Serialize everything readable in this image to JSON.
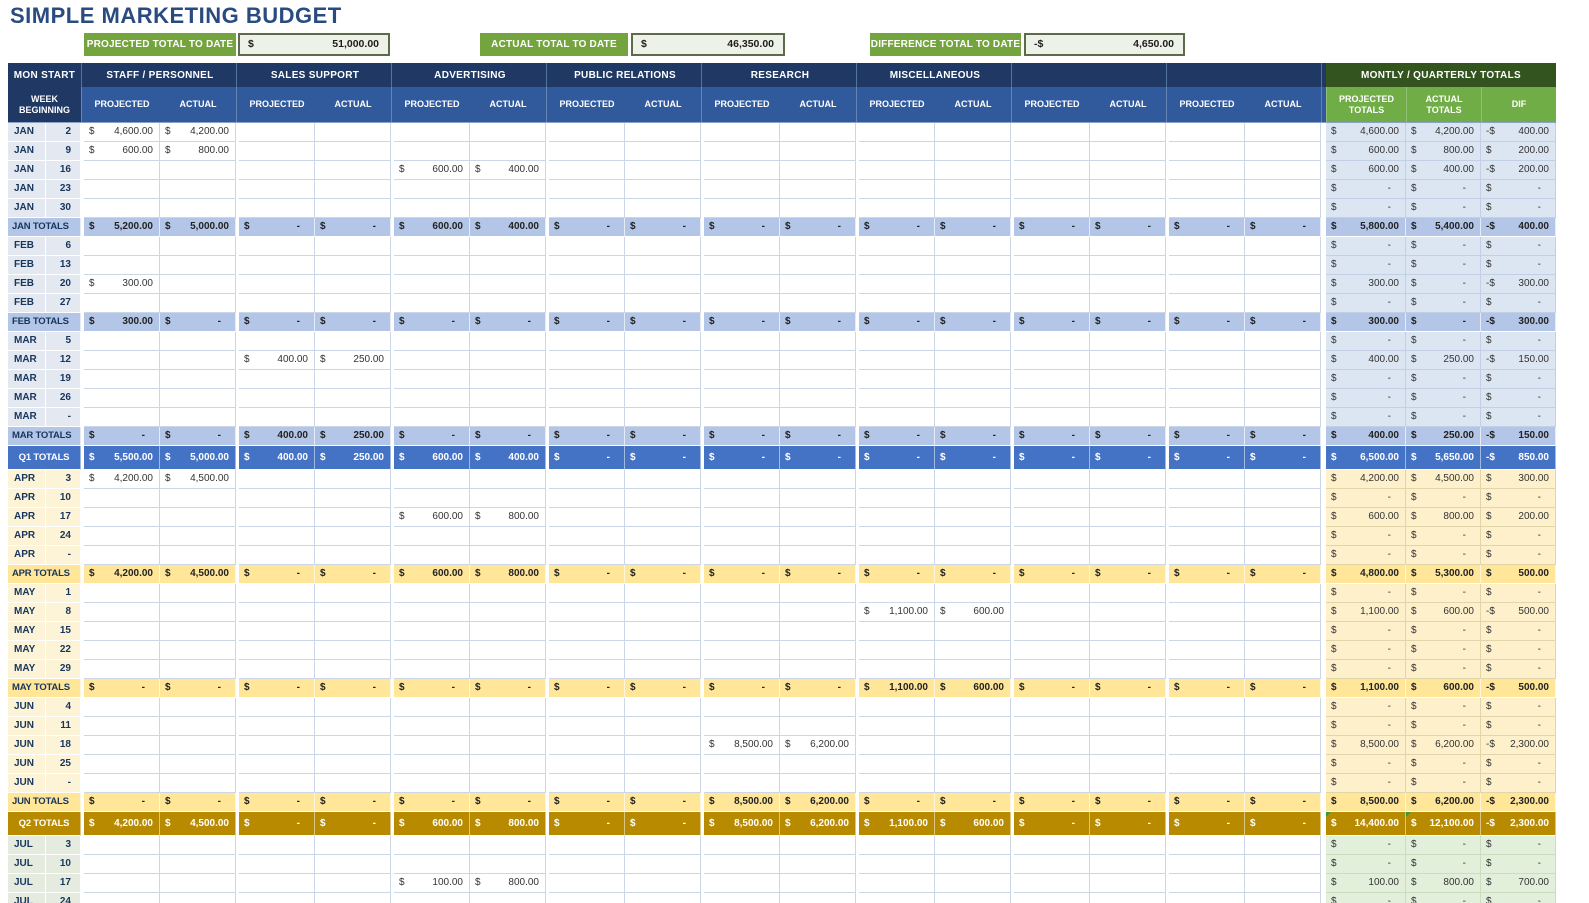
{
  "title": "SIMPLE MARKETING BUDGET",
  "summary": {
    "items": [
      {
        "label": "PROJECTED TOTAL TO DATE",
        "currency": "$",
        "value": "51,000.00"
      },
      {
        "label": "ACTUAL TOTAL TO DATE",
        "currency": "$",
        "value": "46,350.00"
      },
      {
        "label": "DIFFERENCE TOTAL TO DATE",
        "currency": "-$",
        "value": "4,650.00"
      }
    ]
  },
  "colors": {
    "header_navy": "#1f3864",
    "header_blue": "#315a9d",
    "totals_header_green": "#33531f",
    "totals_sub_green": "#70ad47",
    "summary_green": "#74a43d",
    "q1_accent": "#4472c4",
    "q1_band": "#b4c6e7",
    "q1_light": "#dce6f2",
    "q2_accent": "#b88a00",
    "q2_band": "#ffe699",
    "q2_light": "#fdf0ca",
    "q3_light": "#e2efda",
    "error_flag_green": "#2e9b3d"
  },
  "table": {
    "corner_header": "MON START",
    "week_header": "WEEK BEGINNING",
    "sub_projected": "PROJECTED",
    "sub_actual": "ACTUAL",
    "totals_header": "MONTLY / QUARTERLY TOTALS",
    "totals_subs": [
      "PROJECTED TOTALS",
      "ACTUAL TOTALS",
      "DIF"
    ],
    "groups": [
      {
        "key": "staff",
        "label": "STAFF / PERSONNEL"
      },
      {
        "key": "sales",
        "label": "SALES SUPPORT"
      },
      {
        "key": "advertising",
        "label": "ADVERTISING"
      },
      {
        "key": "pr",
        "label": "PUBLIC RELATIONS"
      },
      {
        "key": "research",
        "label": "RESEARCH"
      },
      {
        "key": "misc",
        "label": "MISCELLANEOUS"
      },
      {
        "key": "blank1",
        "label": ""
      },
      {
        "key": "blank2",
        "label": ""
      }
    ],
    "rows": [
      {
        "type": "week",
        "q": 1,
        "m": "JAN",
        "d": "2",
        "cells": {
          "0": "4,600.00",
          "1": "4,200.00"
        },
        "tot": [
          "4,600.00",
          "4,200.00",
          "-400.00"
        ]
      },
      {
        "type": "week",
        "q": 1,
        "m": "JAN",
        "d": "9",
        "cells": {
          "0": "600.00",
          "1": "800.00"
        },
        "tot": [
          "600.00",
          "800.00",
          "200.00"
        ]
      },
      {
        "type": "week",
        "q": 1,
        "m": "JAN",
        "d": "16",
        "cells": {
          "4": "600.00",
          "5": "400.00"
        },
        "tot": [
          "600.00",
          "400.00",
          "-200.00"
        ]
      },
      {
        "type": "week",
        "q": 1,
        "m": "JAN",
        "d": "23",
        "cells": {},
        "tot": [
          "-",
          "-",
          "-"
        ]
      },
      {
        "type": "week",
        "q": 1,
        "m": "JAN",
        "d": "30",
        "cells": {},
        "tot": [
          "-",
          "-",
          "-"
        ]
      },
      {
        "type": "mtotal",
        "q": 1,
        "label": "JAN TOTALS",
        "fill": "-",
        "cells": {
          "0": "5,200.00",
          "1": "5,000.00",
          "4": "600.00",
          "5": "400.00"
        },
        "tot": [
          "5,800.00",
          "5,400.00",
          "-400.00"
        ]
      },
      {
        "type": "week",
        "q": 1,
        "m": "FEB",
        "d": "6",
        "cells": {},
        "tot": [
          "-",
          "-",
          "-"
        ]
      },
      {
        "type": "week",
        "q": 1,
        "m": "FEB",
        "d": "13",
        "cells": {},
        "tot": [
          "-",
          "-",
          "-"
        ]
      },
      {
        "type": "week",
        "q": 1,
        "m": "FEB",
        "d": "20",
        "cells": {
          "0": "300.00"
        },
        "tot": [
          "300.00",
          "-",
          "-300.00"
        ]
      },
      {
        "type": "week",
        "q": 1,
        "m": "FEB",
        "d": "27",
        "cells": {},
        "tot": [
          "-",
          "-",
          "-"
        ]
      },
      {
        "type": "mtotal",
        "q": 1,
        "label": "FEB TOTALS",
        "fill": "-",
        "cells": {
          "0": "300.00"
        },
        "tot": [
          "300.00",
          "-",
          "-300.00"
        ]
      },
      {
        "type": "week",
        "q": 1,
        "m": "MAR",
        "d": "5",
        "cells": {},
        "tot": [
          "-",
          "-",
          "-"
        ]
      },
      {
        "type": "week",
        "q": 1,
        "m": "MAR",
        "d": "12",
        "cells": {
          "2": "400.00",
          "3": "250.00"
        },
        "tot": [
          "400.00",
          "250.00",
          "-150.00"
        ]
      },
      {
        "type": "week",
        "q": 1,
        "m": "MAR",
        "d": "19",
        "cells": {},
        "tot": [
          "-",
          "-",
          "-"
        ]
      },
      {
        "type": "week",
        "q": 1,
        "m": "MAR",
        "d": "26",
        "cells": {},
        "tot": [
          "-",
          "-",
          "-"
        ]
      },
      {
        "type": "week",
        "q": 1,
        "m": "MAR",
        "d": "-",
        "cells": {},
        "tot": [
          "-",
          "-",
          "-"
        ]
      },
      {
        "type": "mtotal",
        "q": 1,
        "label": "MAR TOTALS",
        "fill": "-",
        "cells": {
          "2": "400.00",
          "3": "250.00"
        },
        "tot": [
          "400.00",
          "250.00",
          "-150.00"
        ]
      },
      {
        "type": "qtotal",
        "q": 1,
        "label": "Q1 TOTALS",
        "fill": "-",
        "cells": {
          "0": "5,500.00",
          "1": "5,000.00",
          "2": "400.00",
          "3": "250.00",
          "4": "600.00",
          "5": "400.00"
        },
        "tot": [
          "6,500.00",
          "5,650.00",
          "-850.00"
        ]
      },
      {
        "type": "week",
        "q": 2,
        "m": "APR",
        "d": "3",
        "cells": {
          "0": "4,200.00",
          "1": "4,500.00"
        },
        "tot": [
          "4,200.00",
          "4,500.00",
          "300.00"
        ]
      },
      {
        "type": "week",
        "q": 2,
        "m": "APR",
        "d": "10",
        "cells": {},
        "tot": [
          "-",
          "-",
          "-"
        ]
      },
      {
        "type": "week",
        "q": 2,
        "m": "APR",
        "d": "17",
        "cells": {
          "4": "600.00",
          "5": "800.00"
        },
        "tot": [
          "600.00",
          "800.00",
          "200.00"
        ]
      },
      {
        "type": "week",
        "q": 2,
        "m": "APR",
        "d": "24",
        "cells": {},
        "tot": [
          "-",
          "-",
          "-"
        ]
      },
      {
        "type": "week",
        "q": 2,
        "m": "APR",
        "d": "-",
        "cells": {},
        "tot": [
          "-",
          "-",
          "-"
        ]
      },
      {
        "type": "mtotal",
        "q": 2,
        "label": "APR TOTALS",
        "fill": "-",
        "cells": {
          "0": "4,200.00",
          "1": "4,500.00",
          "4": "600.00",
          "5": "800.00"
        },
        "tot": [
          "4,800.00",
          "5,300.00",
          "500.00"
        ]
      },
      {
        "type": "week",
        "q": 2,
        "m": "MAY",
        "d": "1",
        "cells": {},
        "tot": [
          "-",
          "-",
          "-"
        ]
      },
      {
        "type": "week",
        "q": 2,
        "m": "MAY",
        "d": "8",
        "cells": {
          "10": "1,100.00",
          "11": "600.00"
        },
        "tot": [
          "1,100.00",
          "600.00",
          "-500.00"
        ]
      },
      {
        "type": "week",
        "q": 2,
        "m": "MAY",
        "d": "15",
        "cells": {},
        "tot": [
          "-",
          "-",
          "-"
        ]
      },
      {
        "type": "week",
        "q": 2,
        "m": "MAY",
        "d": "22",
        "cells": {},
        "tot": [
          "-",
          "-",
          "-"
        ]
      },
      {
        "type": "week",
        "q": 2,
        "m": "MAY",
        "d": "29",
        "cells": {},
        "tot": [
          "-",
          "-",
          "-"
        ]
      },
      {
        "type": "mtotal",
        "q": 2,
        "label": "MAY TOTALS",
        "fill": "-",
        "cells": {
          "10": "1,100.00",
          "11": "600.00"
        },
        "tot": [
          "1,100.00",
          "600.00",
          "-500.00"
        ]
      },
      {
        "type": "week",
        "q": 2,
        "m": "JUN",
        "d": "4",
        "cells": {},
        "tot": [
          "-",
          "-",
          "-"
        ]
      },
      {
        "type": "week",
        "q": 2,
        "m": "JUN",
        "d": "11",
        "cells": {},
        "tot": [
          "-",
          "-",
          "-"
        ]
      },
      {
        "type": "week",
        "q": 2,
        "m": "JUN",
        "d": "18",
        "cells": {
          "8": "8,500.00",
          "9": "6,200.00"
        },
        "tot": [
          "8,500.00",
          "6,200.00",
          "-2,300.00"
        ]
      },
      {
        "type": "week",
        "q": 2,
        "m": "JUN",
        "d": "25",
        "cells": {},
        "tot": [
          "-",
          "-",
          "-"
        ]
      },
      {
        "type": "week",
        "q": 2,
        "m": "JUN",
        "d": "-",
        "cells": {},
        "tot": [
          "-",
          "-",
          "-"
        ]
      },
      {
        "type": "mtotal",
        "q": 2,
        "label": "JUN TOTALS",
        "fill": "-",
        "cells": {
          "8": "8,500.00",
          "9": "6,200.00"
        },
        "tot": [
          "8,500.00",
          "6,200.00",
          "-2,300.00"
        ]
      },
      {
        "type": "qtotal",
        "q": 2,
        "label": "Q2 TOTALS",
        "fill": "-",
        "cells": {
          "0": "4,200.00",
          "1": "4,500.00",
          "4": "600.00",
          "5": "800.00",
          "8": "8,500.00",
          "9": "6,200.00",
          "10": "1,100.00",
          "11": "600.00"
        },
        "tot": [
          "14,400.00",
          "12,100.00",
          "-2,300.00"
        ],
        "flags": [
          0,
          1
        ]
      },
      {
        "type": "week",
        "q": 3,
        "m": "JUL",
        "d": "3",
        "cells": {},
        "tot": [
          "-",
          "-",
          "-"
        ]
      },
      {
        "type": "week",
        "q": 3,
        "m": "JUL",
        "d": "10",
        "cells": {},
        "tot": [
          "-",
          "-",
          "-"
        ]
      },
      {
        "type": "week",
        "q": 3,
        "m": "JUL",
        "d": "17",
        "cells": {
          "4": "100.00",
          "5": "800.00"
        },
        "tot": [
          "100.00",
          "800.00",
          "700.00"
        ]
      },
      {
        "type": "week",
        "q": 3,
        "m": "JUL",
        "d": "24",
        "cells": {},
        "tot": [
          "-",
          "-",
          "-"
        ]
      }
    ]
  }
}
